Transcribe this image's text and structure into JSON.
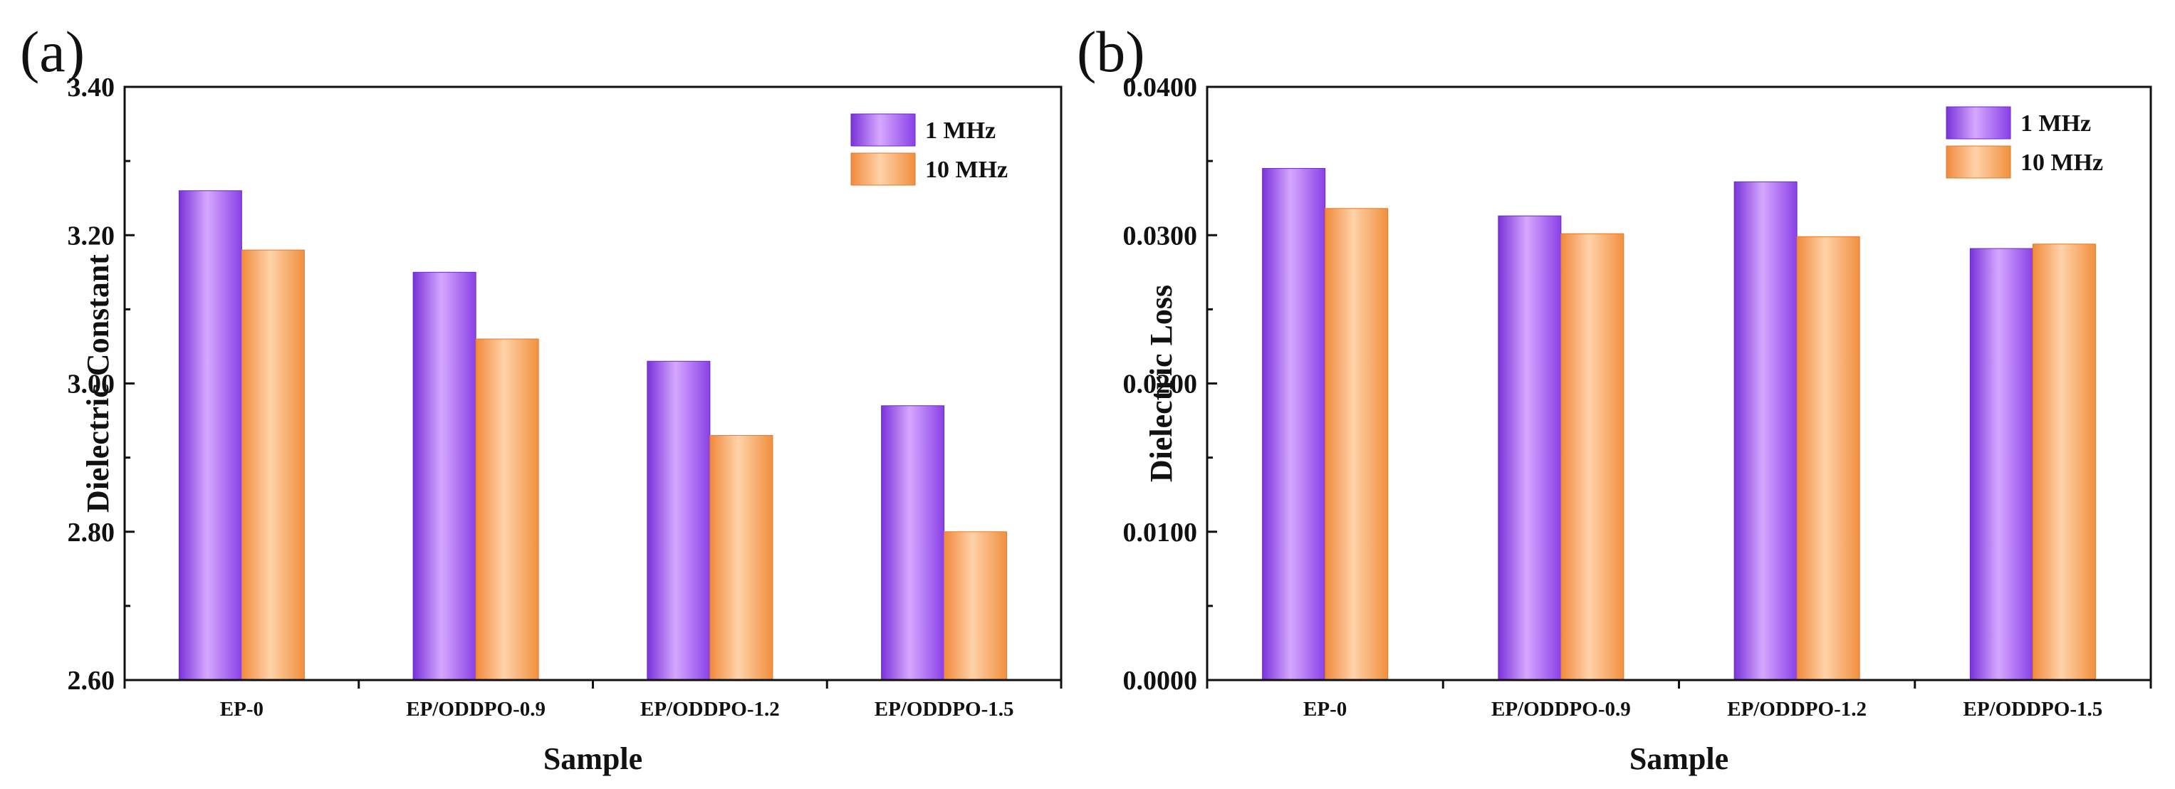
{
  "colors": {
    "series_1MHz": "#a05cf0",
    "series_10MHz": "#f7a05a",
    "axis": "#111111"
  },
  "chart_data": [
    {
      "panel": "(a)",
      "type": "bar",
      "ylabel": "Dielectric Constant",
      "xlabel": "Sample",
      "ylim": [
        2.6,
        3.4
      ],
      "yticks": [
        "2.60",
        "2.80",
        "3.00",
        "3.20",
        "3.40"
      ],
      "categories": [
        "EP-0",
        "EP/ODDPO-0.9",
        "EP/ODDPO-1.2",
        "EP/ODDPO-1.5"
      ],
      "series": [
        {
          "name": "1 MHz",
          "values": [
            3.26,
            3.15,
            3.03,
            2.97
          ]
        },
        {
          "name": "10 MHz",
          "values": [
            3.18,
            3.06,
            2.93,
            2.8
          ]
        }
      ],
      "legend_position": "top-right",
      "grid": false
    },
    {
      "panel": "(b)",
      "type": "bar",
      "ylabel": "Dielectric Loss",
      "xlabel": "Sample",
      "ylim": [
        0.0,
        0.04
      ],
      "yticks": [
        "0.0000",
        "0.0100",
        "0.0200",
        "0.0300",
        "0.0400"
      ],
      "categories": [
        "EP-0",
        "EP/ODDPO-0.9",
        "EP/ODDPO-1.2",
        "EP/ODDPO-1.5"
      ],
      "series": [
        {
          "name": "1 MHz",
          "values": [
            0.0345,
            0.0313,
            0.0336,
            0.0291
          ]
        },
        {
          "name": "10 MHz",
          "values": [
            0.0318,
            0.0301,
            0.0299,
            0.0294
          ]
        }
      ],
      "legend_position": "top-right",
      "grid": false
    }
  ]
}
